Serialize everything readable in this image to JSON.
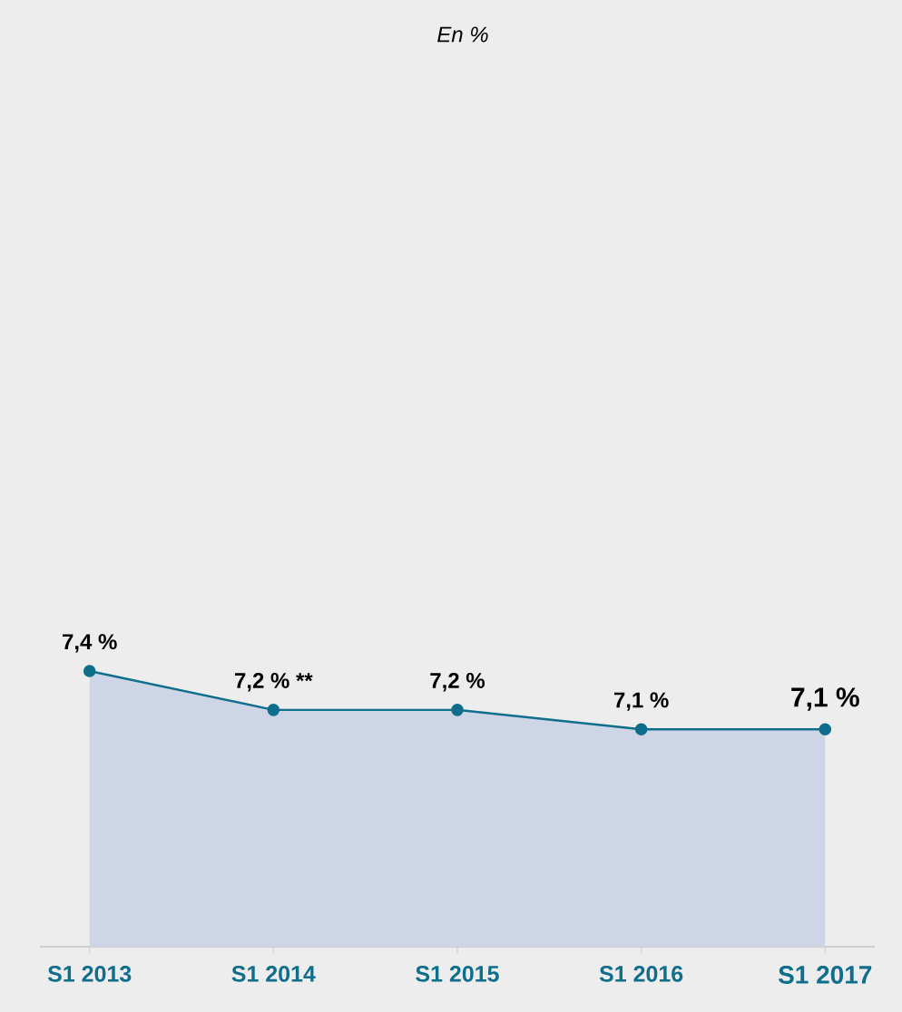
{
  "chart_data": {
    "type": "area",
    "subtitle": "En %",
    "categories": [
      "S1 2013",
      "S1 2014",
      "S1 2015",
      "S1 2016",
      "S1 2017"
    ],
    "series": [
      {
        "color": "#0e6e8c",
        "values": [
          7.4,
          7.2,
          7.2,
          7.1,
          7.1
        ],
        "value_labels": [
          "7,4 %",
          "7,2 % **",
          "7,2 %",
          "7,1 %",
          "7,1 %"
        ]
      }
    ],
    "marker": "circle"
  }
}
